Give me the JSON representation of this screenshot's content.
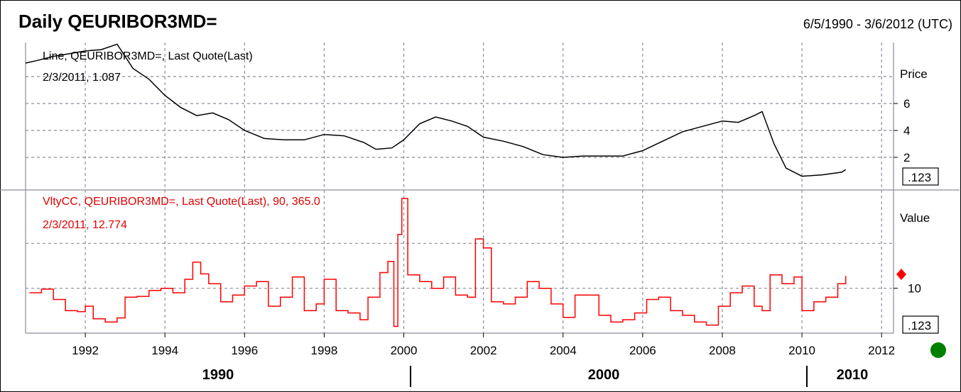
{
  "header": {
    "title": "Daily QEURIBOR3MD=",
    "date_range": "6/5/1990 - 3/6/2012 (UTC)"
  },
  "colors": {
    "price_line": "#000000",
    "volatility_line": "#ff0000",
    "grid": "#8c8c9c",
    "status_dot": "#008000",
    "marker": "#ff0000"
  },
  "status_icon": "green-status-dot",
  "chart_data": [
    {
      "type": "line",
      "panel": "price",
      "title": "",
      "annotation_line1": "Line, QEURIBOR3MD=, Last Quote(Last)",
      "annotation_line2": "2/3/2011, 1.087",
      "ylabel": "Price",
      "y_ticks": [
        "6",
        "4",
        "2"
      ],
      "last_value_box": ".123",
      "ylim": [
        0,
        10
      ],
      "xlim": [
        1990.5,
        2012.3
      ],
      "grid": true,
      "series": [
        {
          "x": [
            1990.5,
            1990.8,
            1991.2,
            1991.6,
            1992.0,
            1992.4,
            1992.8,
            1993.2,
            1993.6,
            1994.0,
            1994.4,
            1994.8,
            1995.2,
            1995.6,
            1996.0,
            1996.5,
            1997.0,
            1997.5,
            1998.0,
            1998.5,
            1999.0,
            1999.3,
            1999.7,
            2000.0,
            2000.4,
            2000.8,
            2001.2,
            2001.6,
            2002.0,
            2002.5,
            2003.0,
            2003.5,
            2004.0,
            2004.5,
            2005.0,
            2005.5,
            2006.0,
            2006.5,
            2007.0,
            2007.5,
            2008.0,
            2008.4,
            2008.8,
            2009.0,
            2009.3,
            2009.6,
            2010.0,
            2010.5,
            2011.0,
            2011.1
          ],
          "y": [
            9.0,
            9.2,
            9.5,
            9.7,
            9.9,
            10.0,
            10.4,
            8.6,
            7.8,
            6.6,
            5.7,
            5.1,
            5.3,
            4.8,
            4.0,
            3.4,
            3.3,
            3.3,
            3.7,
            3.6,
            3.1,
            2.6,
            2.7,
            3.3,
            4.5,
            5.0,
            4.7,
            4.3,
            3.5,
            3.2,
            2.8,
            2.2,
            2.0,
            2.1,
            2.1,
            2.1,
            2.5,
            3.2,
            3.9,
            4.3,
            4.7,
            4.6,
            5.1,
            5.4,
            3.0,
            1.2,
            0.6,
            0.7,
            0.9,
            1.087
          ]
        }
      ]
    },
    {
      "type": "line",
      "panel": "volatility",
      "title": "",
      "annotation_line1": "VltyCC, QEURIBOR3MD=, Last Quote(Last), 90, 365.0",
      "annotation_line2": "2/3/2011, 12.774",
      "ylabel": "Value",
      "y_ticks": [
        "10"
      ],
      "last_value_box": ".123",
      "ylim": [
        0,
        30
      ],
      "xlim": [
        1990.5,
        2012.3
      ],
      "grid": true,
      "x_ticks": [
        "1992",
        "1994",
        "1996",
        "1998",
        "2000",
        "2002",
        "2004",
        "2006",
        "2008",
        "2010",
        "2012"
      ],
      "decade_labels": [
        "1990",
        "2000",
        "2010"
      ],
      "series": [
        {
          "x": [
            1990.6,
            1990.9,
            1991.2,
            1991.5,
            1991.8,
            1992.0,
            1992.2,
            1992.5,
            1992.8,
            1993.0,
            1993.3,
            1993.6,
            1993.9,
            1994.2,
            1994.5,
            1994.7,
            1994.9,
            1995.1,
            1995.4,
            1995.7,
            1996.0,
            1996.3,
            1996.6,
            1996.9,
            1997.2,
            1997.5,
            1997.8,
            1998.0,
            1998.3,
            1998.6,
            1998.9,
            1999.1,
            1999.4,
            1999.6,
            1999.75,
            1999.85,
            1999.95,
            2000.1,
            2000.4,
            2000.7,
            2001.0,
            2001.3,
            2001.6,
            2001.8,
            2002.0,
            2002.2,
            2002.5,
            2002.8,
            2003.1,
            2003.4,
            2003.7,
            2004.0,
            2004.3,
            2004.6,
            2004.9,
            2005.2,
            2005.5,
            2005.8,
            2006.1,
            2006.4,
            2006.7,
            2007.0,
            2007.3,
            2007.6,
            2007.9,
            2008.2,
            2008.5,
            2008.8,
            2009.0,
            2009.2,
            2009.5,
            2009.8,
            2010.0,
            2010.3,
            2010.6,
            2010.9,
            2011.1
          ],
          "y": [
            9.0,
            9.8,
            7.5,
            5.0,
            4.8,
            6.0,
            3.2,
            2.5,
            3.4,
            8.0,
            8.2,
            9.5,
            10.0,
            9.0,
            12.0,
            15.8,
            13.2,
            11.0,
            7.0,
            8.5,
            10.5,
            11.5,
            6.0,
            8.0,
            12.5,
            5.0,
            6.5,
            12.0,
            5.0,
            4.5,
            3.0,
            8.0,
            13.5,
            16.0,
            1.5,
            22.0,
            30.0,
            13.0,
            11.5,
            10.0,
            12.5,
            8.5,
            8.0,
            21.0,
            19.0,
            7.0,
            6.5,
            8.0,
            11.5,
            10.0,
            6.5,
            3.5,
            8.5,
            8.5,
            4.0,
            2.5,
            3.0,
            4.5,
            7.5,
            8.0,
            5.0,
            4.0,
            2.5,
            1.8,
            6.0,
            9.0,
            10.5,
            6.0,
            5.0,
            13.0,
            11.0,
            12.5,
            5.0,
            7.0,
            8.0,
            11.0,
            12.774
          ]
        }
      ]
    }
  ]
}
